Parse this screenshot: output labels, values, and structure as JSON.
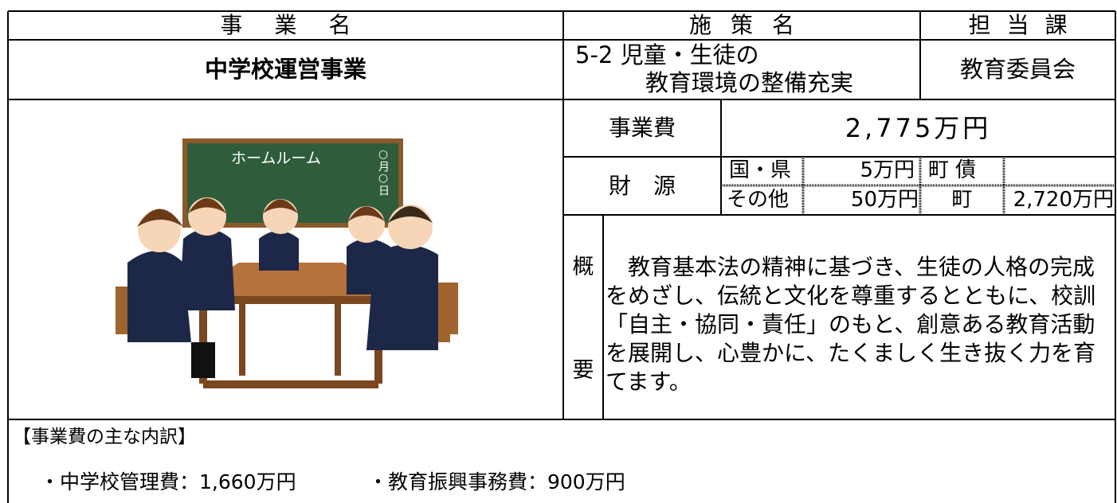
{
  "header": {
    "project_name": "事業名",
    "policy_name": "施策名",
    "department": "担当課"
  },
  "project": {
    "name": "中学校運営事業",
    "policy": [
      "5-2 児童・生徒の",
      "教育環境の整備充実"
    ],
    "department": "教育委員会"
  },
  "illustration": {
    "board_title": "ホームルーム",
    "board_date": "○月○日"
  },
  "cost": {
    "label": "事業費",
    "value": "2,775万円"
  },
  "funding": {
    "label": "財源",
    "rows": [
      [
        "国・県",
        "5万円",
        "町債"
      ],
      [
        "その他",
        "50万円",
        "町",
        "2,720万円"
      ]
    ]
  },
  "summary": {
    "label": [
      "概",
      "要"
    ],
    "text": "　教育基本法の精神に基づき、生徒の人格の完成をめざし、伝統と文化を尊重するとともに、校訓「自主・協同・責任」のもと、創意ある教育活動を展開し、心豊かに、たくましく生き抜く力を育てます。"
  },
  "breakdown": {
    "title": "【事業費の主な内訳】",
    "items": [
      "・中学校管理費：1,660万円",
      "・教育振興事務費：900万円"
    ]
  }
}
